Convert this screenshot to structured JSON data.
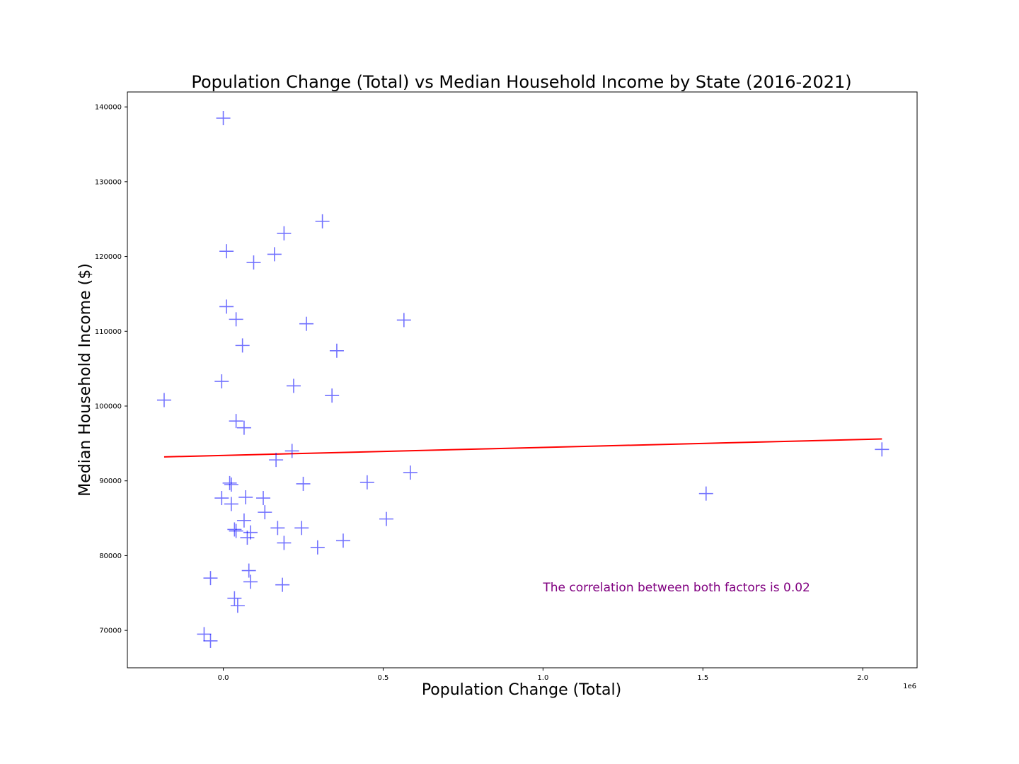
{
  "chart_data": {
    "type": "scatter",
    "title": "Population Change (Total) vs Median Household Income by State (2016-2021)",
    "xlabel": "Population Change (Total)",
    "ylabel": "Median Household Income ($)",
    "x_offset_label": "1e6",
    "xlim": [
      -0.3,
      2.17
    ],
    "ylim": [
      65000,
      142000
    ],
    "x_ticks": [
      0.0,
      0.5,
      1.0,
      1.5,
      2.0
    ],
    "x_tick_labels": [
      "0.0",
      "0.5",
      "1.0",
      "1.5",
      "2.0"
    ],
    "y_ticks": [
      70000,
      80000,
      90000,
      100000,
      110000,
      120000,
      130000,
      140000
    ],
    "y_tick_labels": [
      "70000",
      "80000",
      "90000",
      "100000",
      "110000",
      "120000",
      "130000",
      "140000"
    ],
    "grid": false,
    "marker": "+",
    "marker_color": "#0000ff",
    "line_color": "#ff0000",
    "series": [
      {
        "x": [
          0.0,
          0.31,
          0.19,
          0.01,
          0.16,
          0.095,
          0.01,
          0.04,
          0.565,
          0.26,
          0.06,
          0.355,
          -0.005,
          0.22,
          0.34,
          -0.185,
          0.04,
          0.065,
          0.215,
          0.165,
          2.06,
          0.585,
          0.02,
          0.025,
          0.25,
          0.45,
          -0.005,
          0.07,
          0.125,
          0.025,
          0.13,
          0.065,
          0.035,
          0.04,
          0.17,
          0.245,
          0.085,
          0.075,
          0.51,
          0.375,
          0.19,
          0.295,
          1.51,
          0.08,
          0.085,
          -0.04,
          0.185,
          0.035,
          0.045,
          -0.06,
          -0.04
        ],
        "y": [
          138500,
          124700,
          123100,
          120700,
          120300,
          119200,
          113300,
          111600,
          111500,
          111000,
          108100,
          107400,
          103300,
          102700,
          101400,
          100800,
          98000,
          97100,
          94000,
          92800,
          94200,
          91100,
          89700,
          89500,
          89600,
          89800,
          87700,
          87800,
          87700,
          86900,
          85800,
          84700,
          83500,
          83300,
          83700,
          83700,
          83100,
          82400,
          84900,
          82000,
          81700,
          81100,
          88300,
          78000,
          76500,
          77000,
          76100,
          74300,
          73300,
          69500,
          68600
        ]
      }
    ],
    "regression_line": {
      "x": [
        -0.185,
        2.06
      ],
      "y": [
        93200,
        95600
      ]
    },
    "annotation": {
      "text": "The correlation between both factors is 0.02",
      "x": 1.0,
      "y": 75500,
      "color": "#800080"
    }
  }
}
